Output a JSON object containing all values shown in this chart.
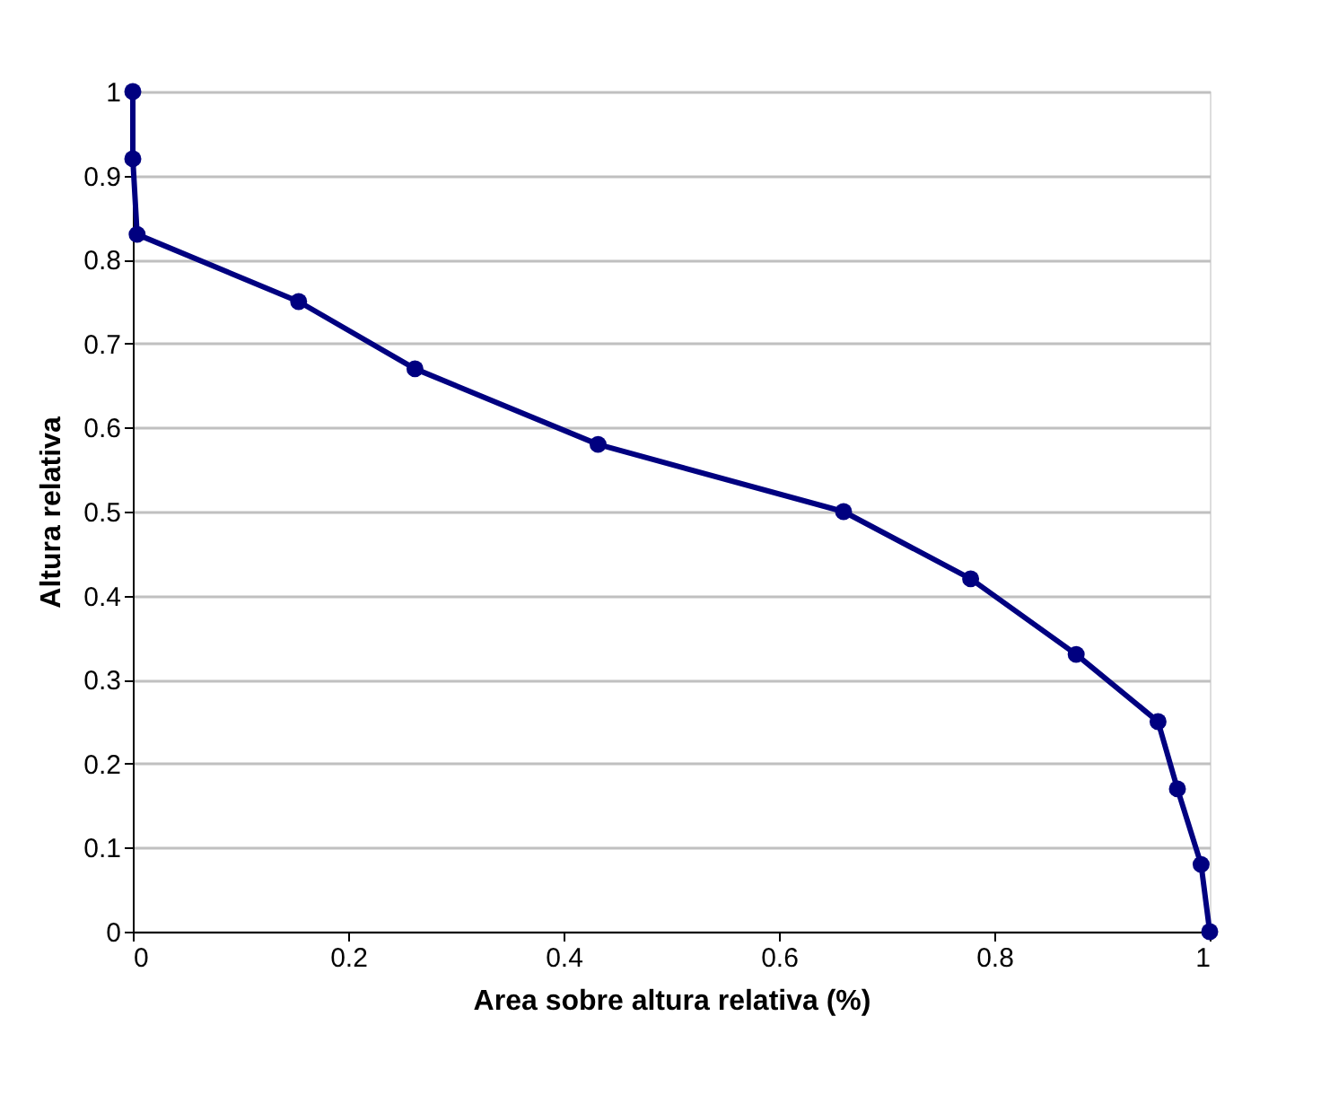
{
  "chart_data": {
    "type": "line",
    "xlabel": "Area sobre altura relativa (%)",
    "ylabel": "Altura relativa",
    "x": [
      0,
      0,
      0.004,
      0.154,
      0.262,
      0.432,
      0.66,
      0.778,
      0.876,
      0.952,
      0.97,
      0.992,
      1.0
    ],
    "series": [
      {
        "color": "#000080",
        "values": [
          1,
          0.92,
          0.83,
          0.75,
          0.67,
          0.58,
          0.5,
          0.42,
          0.33,
          0.25,
          0.17,
          0.08,
          0
        ]
      }
    ],
    "xlim": [
      0,
      1
    ],
    "xticks": [
      0,
      0.2,
      0.4,
      0.6,
      0.8,
      1
    ],
    "ylim": [
      0,
      1
    ],
    "yticks": [
      0,
      0.1,
      0.2,
      0.3,
      0.4,
      0.5,
      0.6,
      0.7,
      0.8,
      0.9,
      1
    ],
    "grid": "y",
    "marker": "circle",
    "line_style": "solid"
  }
}
